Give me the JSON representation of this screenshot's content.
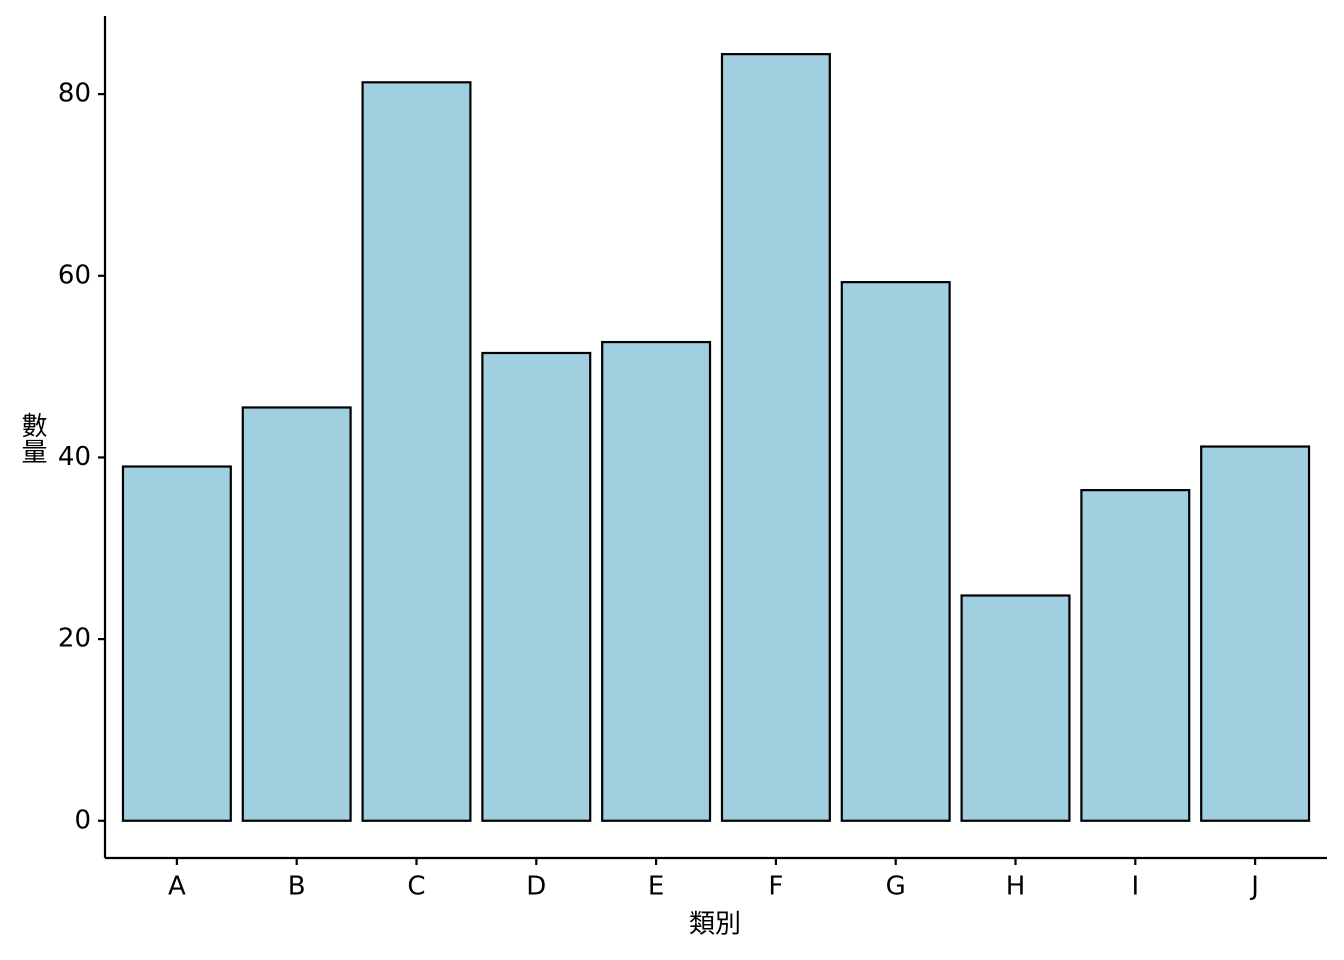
{
  "chart_data": {
    "type": "bar",
    "x_label": "類別",
    "y_label": "數量",
    "categories": [
      "A",
      "B",
      "C",
      "D",
      "E",
      "F",
      "G",
      "H",
      "I",
      "J"
    ],
    "values": [
      39,
      45.5,
      81.3,
      51.5,
      52.7,
      84.4,
      59.3,
      24.8,
      36.4,
      41.2
    ],
    "color": "#a0cfe0",
    "ylim": [
      -4.1,
      88.6
    ],
    "yticks": [
      0,
      20,
      40,
      60,
      80
    ],
    "grid": false
  }
}
